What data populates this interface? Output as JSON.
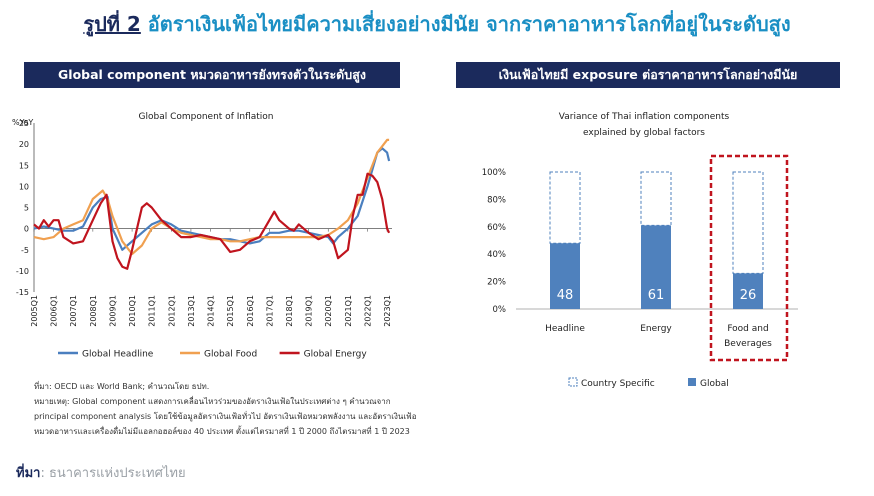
{
  "title": {
    "lead": "รูปที่ 2",
    "text": " อัตราเงินเฟ้อไทยมีความเสี่ยงอย่างมีนัย จากราคาอาหารโลกที่อยู่ในระดับสูง"
  },
  "left_panel": {
    "header": "Global component หมวดอาหารยังทรงตัวในระดับสูง",
    "notes": [
      "ที่มา: OECD และ World Bank; คำนวณโดย ธปท.",
      "หมายเหตุ: Global component แสดงการเคลื่อนไหวร่วมของอัตราเงินเฟ้อในประเทศต่าง ๆ คำนวณจาก",
      "principal component analysis โดยใช้ข้อมูลอัตราเงินเฟ้อทั่วไป อัตราเงินเฟ้อหมวดพลังงาน และอัตราเงินเฟ้อ",
      "หมวดอาหารและเครื่องดื่มไม่มีแอลกอฮอล์ของ 40 ประเทศ ตั้งแต่ไตรมาสที่ 1 ปี 2000 ถึงไตรมาสที่ 1 ปี 2023"
    ]
  },
  "right_panel": {
    "header": "เงินเฟ้อไทยมี exposure ต่อราคาอาหารโลกอย่างมีนัย"
  },
  "source": {
    "label": "ที่มา",
    "text": ": ธนาคารแห่งประเทศไทย"
  },
  "chart_data": [
    {
      "type": "line",
      "title": "Global Component of Inflation",
      "ylabel": "%YoY",
      "ylim": [
        -15,
        25
      ],
      "yticks": [
        25,
        20,
        15,
        10,
        5,
        0,
        -5,
        -10,
        -15
      ],
      "xlim": [
        2005.0,
        2023.25
      ],
      "xticks": [
        "2005Q1",
        "2006Q1",
        "2007Q1",
        "2008Q1",
        "2009Q1",
        "2010Q1",
        "2011Q1",
        "2012Q1",
        "2013Q1",
        "2014Q1",
        "2015Q1",
        "2016Q1",
        "2017Q1",
        "2018Q1",
        "2019Q1",
        "2020Q1",
        "2021Q1",
        "2022Q1",
        "2023Q1"
      ],
      "legend_position": "bottom",
      "series": [
        {
          "name": "Global Headline",
          "color": "#4a7fbf",
          "x": [
            2005,
            2005.5,
            2006,
            2006.5,
            2007,
            2007.5,
            2008,
            2008.4,
            2008.75,
            2009,
            2009.5,
            2010,
            2010.5,
            2011,
            2011.5,
            2012,
            2012.5,
            2013,
            2013.5,
            2014,
            2014.5,
            2015,
            2015.5,
            2016,
            2016.5,
            2017,
            2017.5,
            2018,
            2018.5,
            2019,
            2019.5,
            2020,
            2020.25,
            2020.5,
            2021,
            2021.5,
            2022,
            2022.5,
            2022.75,
            2023,
            2023.1
          ],
          "y": [
            0,
            0.5,
            0,
            -0.5,
            -0.5,
            0.5,
            5,
            7,
            7.5,
            0,
            -5,
            -3,
            -1,
            1,
            2,
            1,
            -0.5,
            -1,
            -1.5,
            -2,
            -2.5,
            -2.5,
            -3,
            -3.5,
            -3,
            -1,
            -1,
            -0.5,
            -0.5,
            -1,
            -1.5,
            -2,
            -3.5,
            -2,
            0,
            3,
            10,
            18,
            19,
            18,
            16
          ]
        },
        {
          "name": "Global Food",
          "color": "#f0a050",
          "x": [
            2005,
            2005.5,
            2006,
            2006.5,
            2007,
            2007.5,
            2008,
            2008.5,
            2008.75,
            2009,
            2009.5,
            2010,
            2010.5,
            2011,
            2011.5,
            2012,
            2012.5,
            2013,
            2013.5,
            2014,
            2014.5,
            2015,
            2015.5,
            2016,
            2016.5,
            2017,
            2017.5,
            2018,
            2018.5,
            2019,
            2019.5,
            2020,
            2020.5,
            2021,
            2021.5,
            2022,
            2022.5,
            2023,
            2023.1
          ],
          "y": [
            -2,
            -2.5,
            -2,
            0,
            1,
            2,
            7,
            9,
            7,
            3,
            -3,
            -6,
            -4,
            0,
            1.5,
            0,
            -1,
            -1.5,
            -2,
            -2.5,
            -2.5,
            -3,
            -3,
            -2.5,
            -2,
            -2,
            -2,
            -2,
            -2,
            -2,
            -2,
            -1.5,
            0,
            2,
            6,
            12,
            18,
            21,
            21
          ]
        },
        {
          "name": "Global Energy",
          "color": "#c0141e",
          "x": [
            2005,
            2005.25,
            2005.5,
            2005.75,
            2006,
            2006.25,
            2006.5,
            2007,
            2007.5,
            2008,
            2008.4,
            2008.7,
            2009,
            2009.25,
            2009.5,
            2009.75,
            2010,
            2010.25,
            2010.5,
            2010.75,
            2011,
            2011.5,
            2012,
            2012.5,
            2013,
            2013.5,
            2014,
            2014.5,
            2015,
            2015.5,
            2016,
            2016.5,
            2017,
            2017.25,
            2017.5,
            2018,
            2018.25,
            2018.5,
            2019,
            2019.5,
            2020,
            2020.25,
            2020.5,
            2021,
            2021.25,
            2021.5,
            2021.75,
            2022,
            2022.25,
            2022.5,
            2022.75,
            2023,
            2023.1
          ],
          "y": [
            1,
            0,
            2,
            0.5,
            2,
            2,
            -2,
            -3.5,
            -3,
            2,
            6,
            8,
            -3,
            -7,
            -9,
            -9.5,
            -5,
            0,
            5,
            6,
            5,
            2,
            0,
            -2,
            -2,
            -1.5,
            -2,
            -2.5,
            -5.5,
            -5,
            -3,
            -2,
            2,
            4,
            2,
            0,
            -0.5,
            1,
            -1,
            -2.5,
            -1.5,
            -3,
            -7,
            -5,
            3,
            8,
            8,
            13,
            12.5,
            11,
            7,
            0,
            -1
          ]
        }
      ]
    },
    {
      "type": "bar",
      "title": [
        "Variance of Thai inflation components",
        "explained by global factors"
      ],
      "categories": [
        "Headline",
        "Energy",
        "Food and Beverages"
      ],
      "ylim": [
        0,
        100
      ],
      "yticks": [
        "100%",
        "80%",
        "60%",
        "40%",
        "20%",
        "0%"
      ],
      "series": [
        {
          "name": "Global",
          "values": [
            48,
            61,
            26
          ],
          "color": "#4f81bd"
        },
        {
          "name": "Country Specific",
          "values": [
            52,
            39,
            74
          ],
          "color": "#4f81bd"
        }
      ],
      "data_labels": [
        "48",
        "61",
        "26"
      ],
      "highlighted_category": "Food and Beverages",
      "highlight_color": "#c0141e",
      "legend_position": "bottom"
    }
  ]
}
